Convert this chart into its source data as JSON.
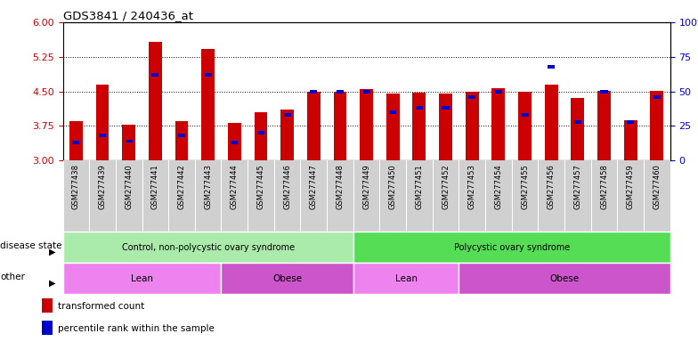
{
  "title": "GDS3841 / 240436_at",
  "samples": [
    "GSM277438",
    "GSM277439",
    "GSM277440",
    "GSM277441",
    "GSM277442",
    "GSM277443",
    "GSM277444",
    "GSM277445",
    "GSM277446",
    "GSM277447",
    "GSM277448",
    "GSM277449",
    "GSM277450",
    "GSM277451",
    "GSM277452",
    "GSM277453",
    "GSM277454",
    "GSM277455",
    "GSM277456",
    "GSM277457",
    "GSM277458",
    "GSM277459",
    "GSM277460"
  ],
  "red_values": [
    3.85,
    4.65,
    3.78,
    5.58,
    3.85,
    5.42,
    3.82,
    4.05,
    4.1,
    4.5,
    4.5,
    4.55,
    4.45,
    4.47,
    4.45,
    4.5,
    4.57,
    4.5,
    4.65,
    4.35,
    4.52,
    3.87,
    4.52
  ],
  "blue_values": [
    13,
    18,
    14,
    62,
    18,
    62,
    13,
    20,
    33,
    50,
    50,
    50,
    35,
    38,
    38,
    46,
    50,
    33,
    68,
    28,
    50,
    28,
    46
  ],
  "ylim_left": [
    3,
    6
  ],
  "ylim_right": [
    0,
    100
  ],
  "yticks_left": [
    3,
    3.75,
    4.5,
    5.25,
    6
  ],
  "yticks_right": [
    0,
    25,
    50,
    75,
    100
  ],
  "ytick_labels_right": [
    "0",
    "25",
    "50",
    "75",
    "100%"
  ],
  "red_color": "#cc0000",
  "blue_color": "#0000cc",
  "disease_state_groups": [
    {
      "label": "Control, non-polycystic ovary syndrome",
      "start": 0,
      "end": 10,
      "color": "#aaeaaa"
    },
    {
      "label": "Polycystic ovary syndrome",
      "start": 11,
      "end": 22,
      "color": "#55dd55"
    }
  ],
  "other_groups": [
    {
      "label": "Lean",
      "start": 0,
      "end": 5,
      "color": "#ee82ee"
    },
    {
      "label": "Obese",
      "start": 6,
      "end": 10,
      "color": "#cc55cc"
    },
    {
      "label": "Lean",
      "start": 11,
      "end": 14,
      "color": "#ee82ee"
    },
    {
      "label": "Obese",
      "start": 15,
      "end": 22,
      "color": "#cc55cc"
    }
  ],
  "disease_label": "disease state",
  "other_label": "other",
  "legend_items": [
    "transformed count",
    "percentile rank within the sample"
  ],
  "tick_label_bg": "#d0d0d0"
}
